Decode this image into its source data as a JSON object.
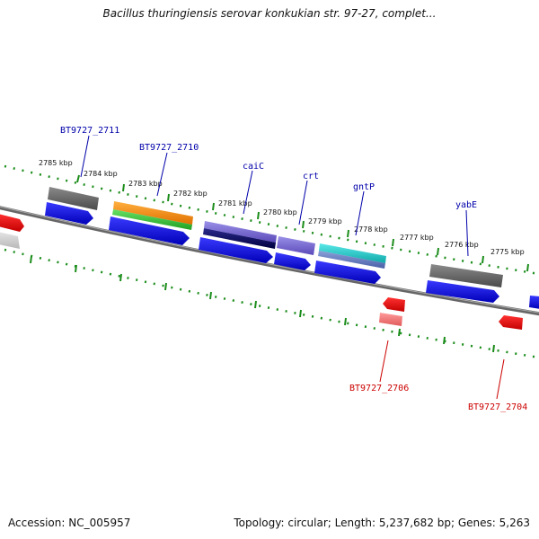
{
  "title": "Bacillus thuringiensis serovar konkukian str. 97-27, complet...",
  "footer": {
    "accession": "Accession: NC_005957",
    "topology": "Topology: circular; Length: 5,237,682 bp; Genes: 5,263"
  },
  "ticks": [
    "2785 kbp",
    "2784 kbp",
    "2783 kbp",
    "2782 kbp",
    "2781 kbp",
    "2780 kbp",
    "2779 kbp",
    "2778 kbp",
    "2777 kbp",
    "2776 kbp",
    "2775 kbp"
  ],
  "gene_labels": {
    "bt2711": "BT9727_2711",
    "bt2710": "BT9727_2710",
    "caiC": "caiC",
    "crt": "crt",
    "gntP": "gntP",
    "yabE": "yabE",
    "bt2706": "BT9727_2706",
    "bt2704": "BT9727_2704"
  },
  "colors": {
    "forward_cds": "#0000ee",
    "reverse_cds": "#ee0000",
    "backbone": "#777777",
    "tick": "#1a8c1a",
    "orange": "#ff8800",
    "green": "#33cc33",
    "purple": "#7766cc",
    "navy": "#000066",
    "cyan": "#22cccc",
    "gray": "#666666"
  }
}
